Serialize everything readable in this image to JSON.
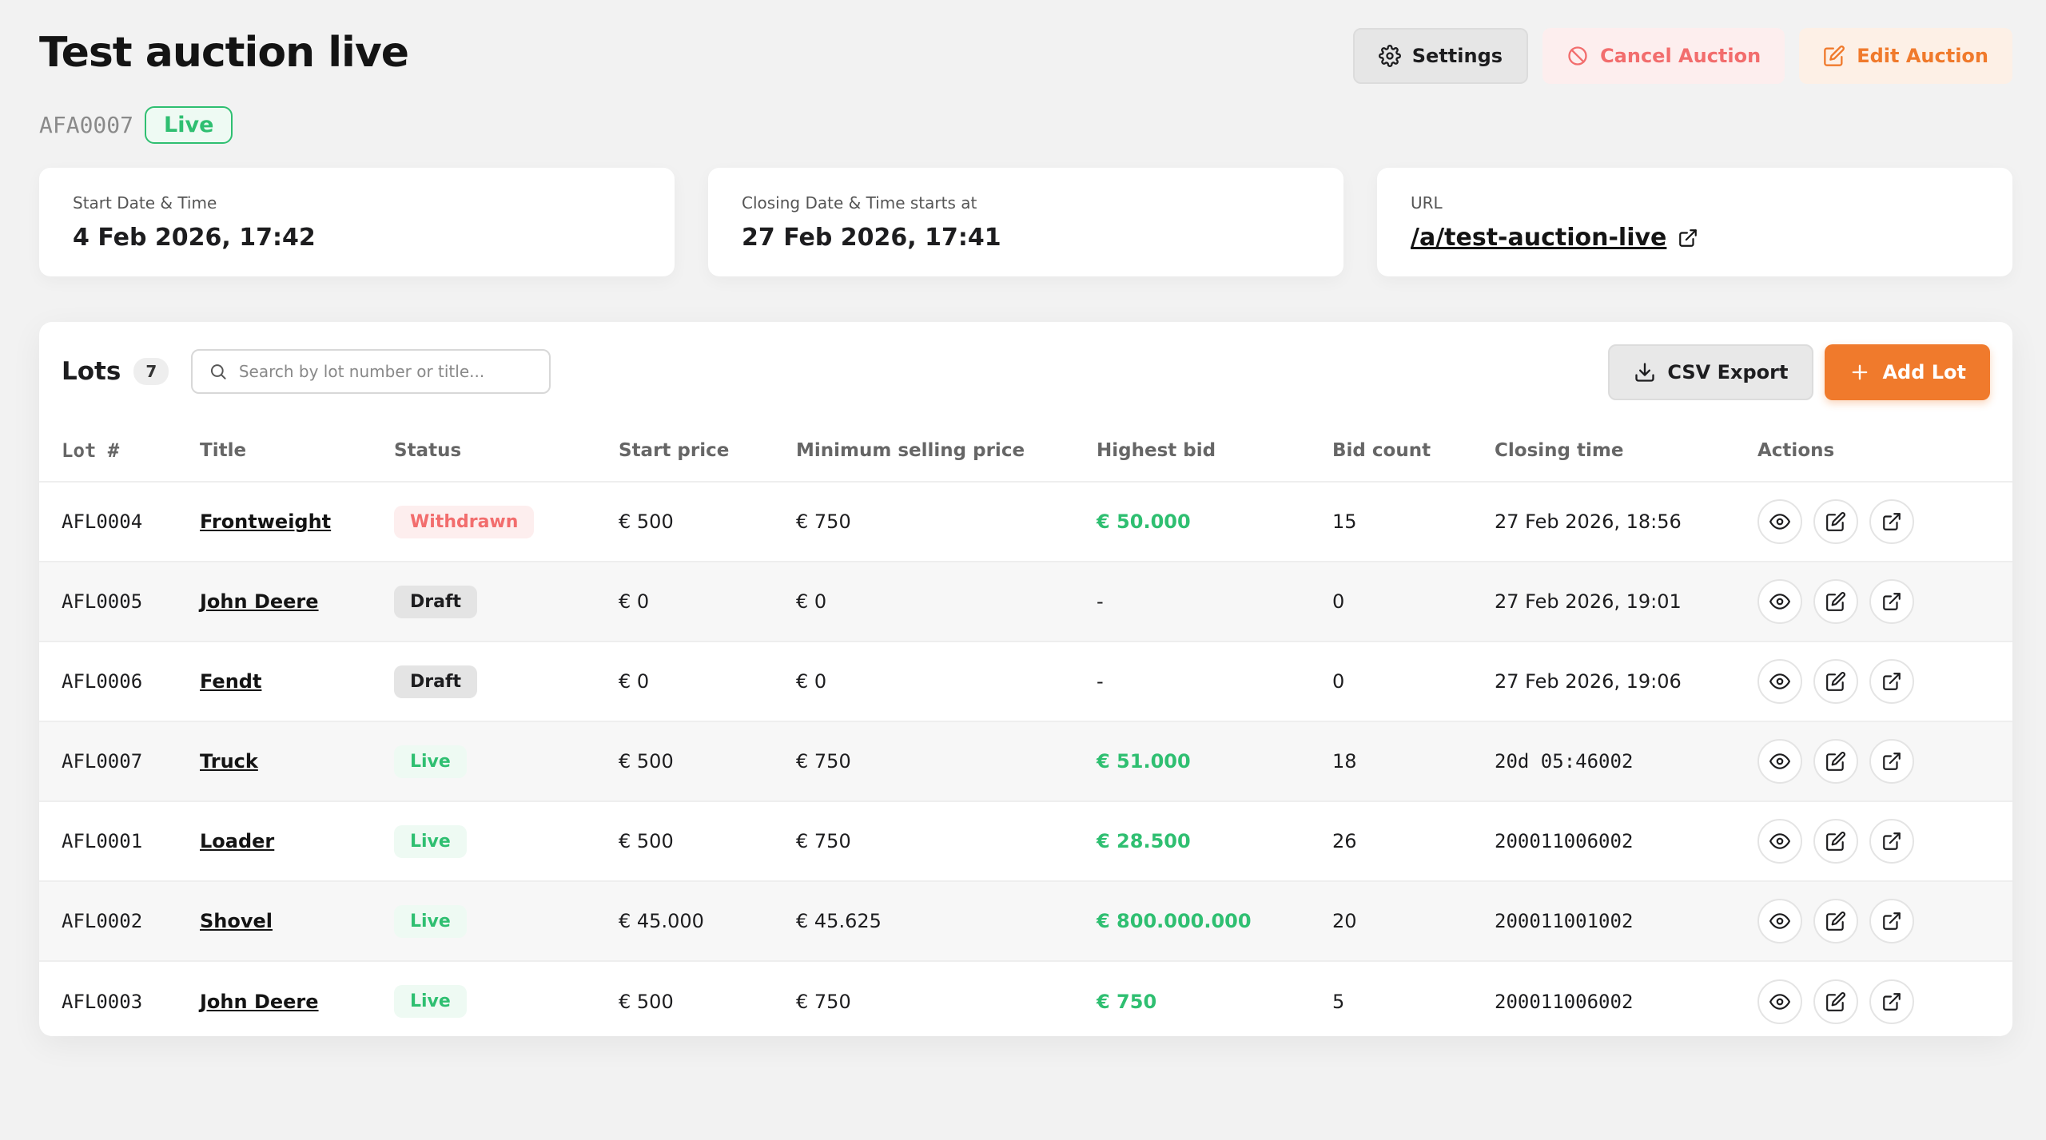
{
  "header": {
    "title": "Test auction live",
    "code": "AFA0007",
    "status": "Live",
    "settings_label": "Settings",
    "cancel_label": "Cancel Auction",
    "edit_label": "Edit Auction"
  },
  "cards": {
    "start_label": "Start Date & Time",
    "start_value": "4 Feb 2026, 17:42",
    "closing_label": "Closing Date & Time starts at",
    "closing_value": "27 Feb 2026, 17:41",
    "url_label": "URL",
    "url_value": "/a/test-auction-live"
  },
  "lots": {
    "title": "Lots",
    "count": "7",
    "search_placeholder": "Search by lot number or title...",
    "csv_label": "CSV Export",
    "add_label": "Add Lot",
    "columns": [
      "Lot #",
      "Title",
      "Status",
      "Start price",
      "Minimum selling price",
      "Highest bid",
      "Bid count",
      "Closing time",
      "Actions"
    ],
    "rows": [
      {
        "lot": "AFL0004",
        "title": "Frontweight",
        "status": "Withdrawn",
        "start": "€ 500",
        "min": "€ 750",
        "high": "€ 50.000",
        "bids": "15",
        "closing": "27 Feb 2026, 18:56"
      },
      {
        "lot": "AFL0005",
        "title": "John Deere",
        "status": "Draft",
        "start": "€ 0",
        "min": "€ 0",
        "high": "-",
        "bids": "0",
        "closing": "27 Feb 2026, 19:01"
      },
      {
        "lot": "AFL0006",
        "title": "Fendt",
        "status": "Draft",
        "start": "€ 0",
        "min": "€ 0",
        "high": "-",
        "bids": "0",
        "closing": "27 Feb 2026, 19:06"
      },
      {
        "lot": "AFL0007",
        "title": "Truck",
        "status": "Live",
        "start": "€ 500",
        "min": "€ 750",
        "high": "€ 51.000",
        "bids": "18",
        "closing": "20d 05:46002"
      },
      {
        "lot": "AFL0001",
        "title": "Loader",
        "status": "Live",
        "start": "€ 500",
        "min": "€ 750",
        "high": "€ 28.500",
        "bids": "26",
        "closing": "200011006002"
      },
      {
        "lot": "AFL0002",
        "title": "Shovel",
        "status": "Live",
        "start": "€ 45.000",
        "min": "€ 45.625",
        "high": "€ 800.000.000",
        "bids": "20",
        "closing": "200011001002"
      },
      {
        "lot": "AFL0003",
        "title": "John Deere",
        "status": "Live",
        "start": "€ 500",
        "min": "€ 750",
        "high": "€ 750",
        "bids": "5",
        "closing": "200011006002"
      }
    ]
  },
  "colors": {
    "accent": "#f07a2c",
    "live": "#2fbf71",
    "withdrawn": "#f26d6d"
  },
  "icons": [
    "gear-icon",
    "ban-icon",
    "edit-icon",
    "external-link-icon",
    "search-icon",
    "download-icon",
    "plus-icon",
    "eye-icon"
  ]
}
